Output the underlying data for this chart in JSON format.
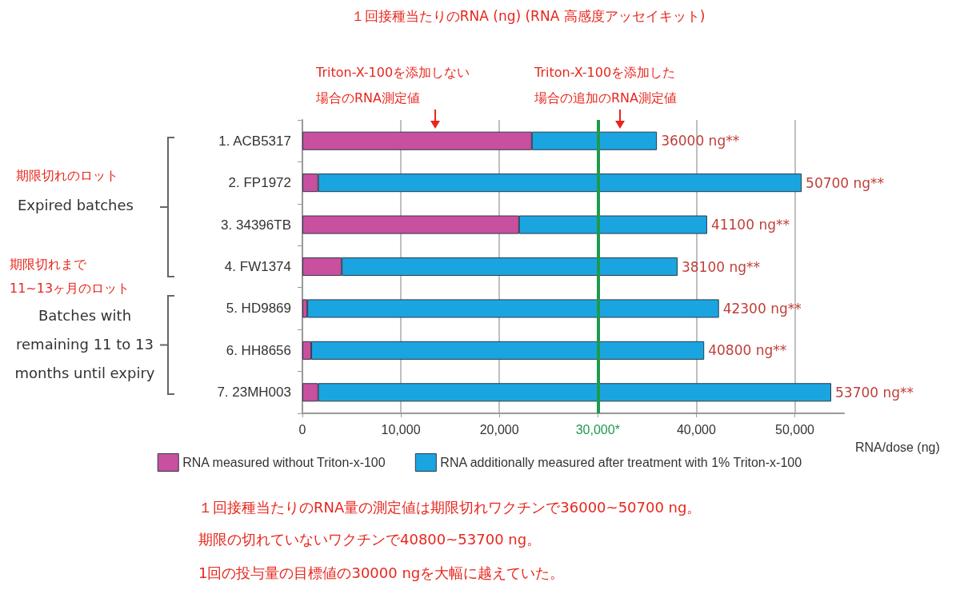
{
  "chart_data": {
    "type": "bar",
    "orientation": "horizontal",
    "stacked": true,
    "title": "１回接種当たりのRNA (ng) (RNA 高感度アッセイキット)",
    "categories": [
      "1. ACB5317",
      "2. FP1972",
      "3. 34396TB",
      "4. FW1374",
      "5. HD9869",
      "6. HH8656",
      "7. 23MH003"
    ],
    "series": [
      {
        "name": "RNA measured without Triton-x-100",
        "color": "#c94f9f",
        "values": [
          23300,
          1600,
          22000,
          4000,
          500,
          900,
          1600
        ]
      },
      {
        "name": "RNA additionally measured after treatment with 1% Triton-x-100",
        "color": "#1ba5e0",
        "values": [
          12700,
          49100,
          19100,
          34100,
          41800,
          39900,
          52100
        ]
      }
    ],
    "totals": [
      "36000 ng**",
      "50700 ng**",
      "41100 ng**",
      "38100 ng**",
      "42300 ng**",
      "40800 ng**",
      "53700 ng**"
    ],
    "xlabel": "RNA/dose (ng)",
    "xlim": [
      0,
      55000
    ],
    "xticks": [
      0,
      {
        "value": 10000,
        "label": "10,000"
      },
      {
        "value": 20000,
        "label": "20,000"
      },
      {
        "value": 30000,
        "label": "30,000*"
      },
      {
        "value": 40000,
        "label": "40,000"
      },
      {
        "value": 50000,
        "label": "50,000"
      }
    ],
    "ref_lines": [
      {
        "axis": "x",
        "value": 30000,
        "color": "#1e9a4c"
      }
    ],
    "grid": "x",
    "legend": "bottom",
    "annotations": [
      "Triton-X-100を添加しない",
      "場合のRNA測定値",
      "Triton-X-100を添加した",
      "場合の追加のRNA測定値",
      "期限切れのロット",
      "Expired batches",
      "期限切れまで",
      "11~13ヶ月のロット",
      "Batches with\nremaining 11 to 13\nmonths until expiry",
      "１回接種当たりのRNA量の測定値は期限切れワクチンで36000~50700 ng。",
      "期限の切れていないワクチンで40800~53700 ng。",
      "1回の投与量の目標値の30000 ngを大幅に越えていた。"
    ]
  }
}
